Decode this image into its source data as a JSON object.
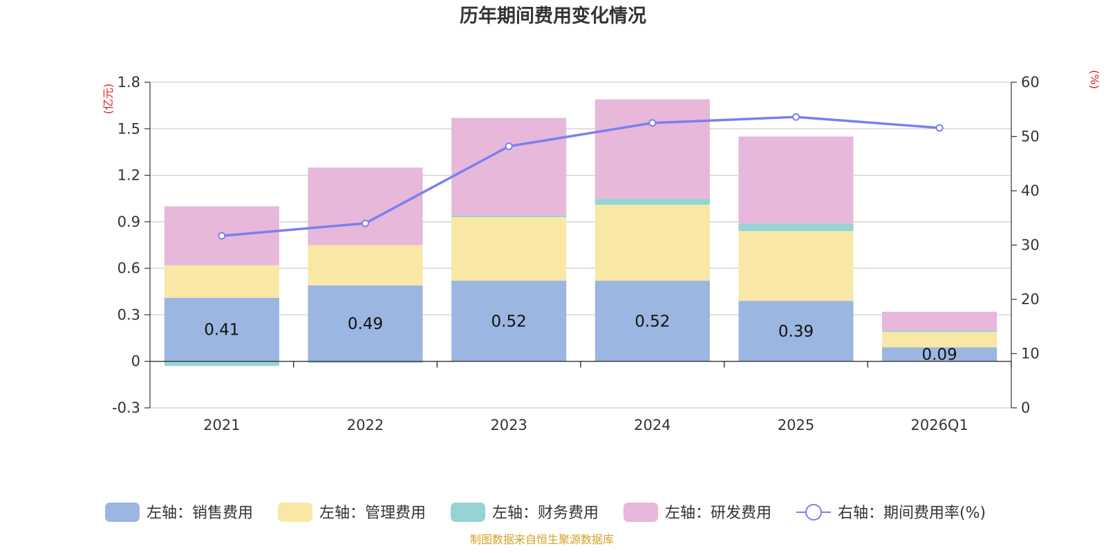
{
  "chart_data": {
    "type": "bar",
    "title": "历年期间费用变化情况",
    "categories": [
      "2021",
      "2022",
      "2023",
      "2024",
      "2025",
      "2026Q1"
    ],
    "left_axis": {
      "unit": "(亿元)",
      "ylim": [
        -0.3,
        1.8
      ],
      "ticks": [
        "-0.3",
        "0",
        "0.3",
        "0.6",
        "0.9",
        "1.2",
        "1.5",
        "1.8"
      ]
    },
    "right_axis": {
      "unit": "(%)",
      "ylim": [
        0,
        60
      ],
      "ticks": [
        "0",
        "10",
        "20",
        "30",
        "40",
        "50",
        "60"
      ]
    },
    "series": [
      {
        "name": "左轴：销售费用",
        "type": "bar",
        "axis": "left",
        "color": "#9bb6e0",
        "values": [
          0.41,
          0.49,
          0.52,
          0.52,
          0.39,
          0.09
        ]
      },
      {
        "name": "左轴：管理费用",
        "type": "bar",
        "axis": "left",
        "color": "#f9e7a6",
        "values": [
          0.21,
          0.26,
          0.41,
          0.49,
          0.45,
          0.1
        ]
      },
      {
        "name": "左轴：财务费用",
        "type": "bar",
        "axis": "left",
        "color": "#96d3d2",
        "values": [
          -0.03,
          -0.01,
          0.01,
          0.04,
          0.05,
          0.01
        ]
      },
      {
        "name": "左轴：研发费用",
        "type": "bar",
        "axis": "left",
        "color": "#e7b8d9",
        "values": [
          0.38,
          0.5,
          0.63,
          0.64,
          0.56,
          0.12
        ]
      },
      {
        "name": "右轴：期间费用率(%)",
        "type": "line",
        "axis": "right",
        "color": "#7a7ff0",
        "values": [
          31.7,
          34.0,
          48.2,
          52.5,
          53.6,
          51.6
        ]
      }
    ],
    "data_labels": [
      "0.41",
      "0.49",
      "0.52",
      "0.52",
      "0.39",
      "0.09"
    ],
    "legend_position": "bottom"
  },
  "source_text": "制图数据来自恒生聚源数据库",
  "colors": {
    "unit": "#e02020",
    "source": "#d4a024",
    "grid": "#cccccc",
    "axis": "#333333"
  }
}
